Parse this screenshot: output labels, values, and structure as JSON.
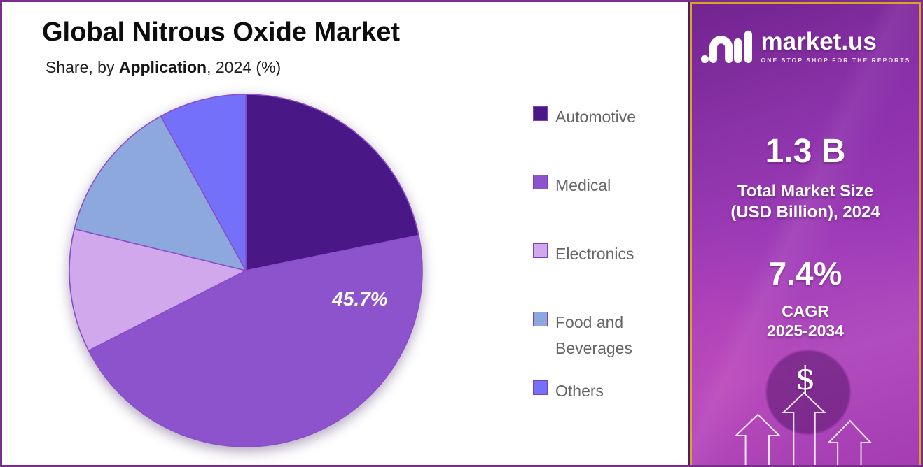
{
  "header": {
    "title": "Global Nitrous Oxide Market",
    "subtitle_prefix": "Share, by ",
    "subtitle_emphasis": "Application",
    "subtitle_suffix": ", 2024 (%)"
  },
  "chart_data": {
    "type": "pie",
    "title": "Global Nitrous Oxide Market Share, by Application, 2024 (%)",
    "categories": [
      "Automotive",
      "Medical",
      "Electronics",
      "Food and Beverages",
      "Others"
    ],
    "values": [
      21.8,
      45.7,
      11.3,
      13.2,
      8.0
    ],
    "colors": [
      "#4a1787",
      "#8c53cd",
      "#d2a8ec",
      "#8ca8dc",
      "#7470fa"
    ],
    "slice_stroke": "#8a4fc8",
    "start_angle_deg_from_top": 0,
    "direction": "clockwise",
    "legend_position": "right",
    "displayed_label": {
      "series": "Medical",
      "text": "45.7%"
    },
    "note": "only the Medical slice shows a data label; other values estimated from slice angles"
  },
  "sidebar": {
    "logo_text": "market.us",
    "logo_tagline": "ONE STOP SHOP FOR THE REPORTS",
    "market_size_value": "1.3 B",
    "market_size_label_line1": "Total Market Size",
    "market_size_label_line2": "(USD Billion), 2024",
    "cagr_value": "7.4%",
    "cagr_label_line1": "CAGR",
    "cagr_label_line2": "2025-2034",
    "dollar_symbol": "$",
    "colors": {
      "border_gold": "#d9a32a",
      "background_purple": "#a13db9",
      "frame_purple": "#7b2d8e"
    }
  }
}
